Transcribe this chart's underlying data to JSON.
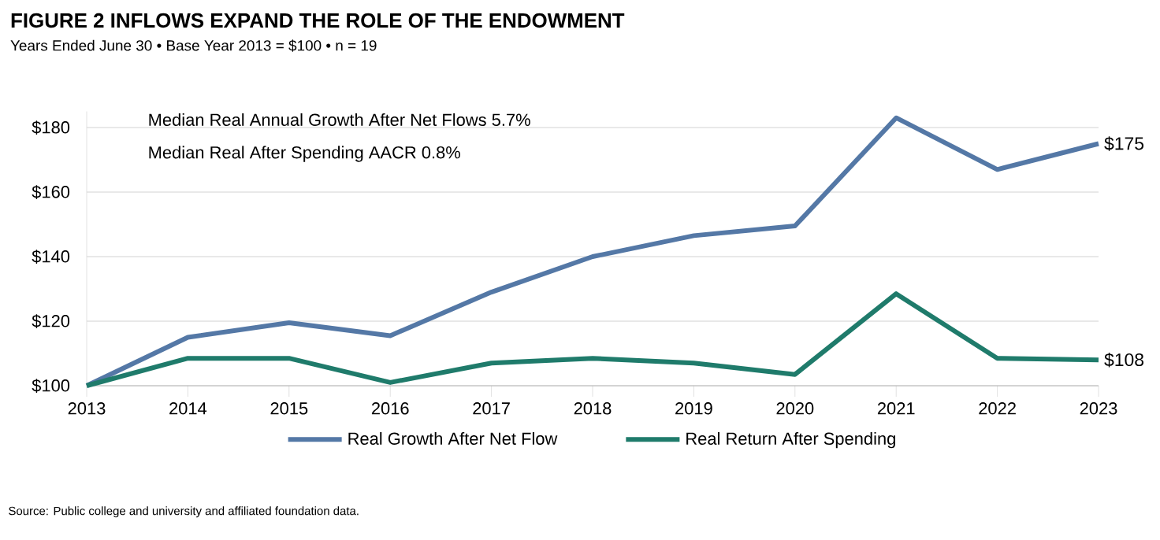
{
  "chart_data": {
    "type": "line",
    "title": "FIGURE 2   INFLOWS EXPAND THE ROLE OF THE ENDOWMENT",
    "subtitle": "Years Ended June 30 • Base Year 2013 = $100 • n = 19",
    "x": [
      2013,
      2014,
      2015,
      2016,
      2017,
      2018,
      2019,
      2020,
      2021,
      2022,
      2023
    ],
    "series": [
      {
        "name": "Real Growth After Net Flow",
        "color": "#5478a6",
        "values": [
          100,
          115,
          119.5,
          115.5,
          129,
          140,
          146.5,
          149.5,
          183,
          167,
          175
        ]
      },
      {
        "name": "Real Return After Spending",
        "color": "#1f7b6b",
        "values": [
          100,
          108.5,
          108.5,
          101,
          107,
          108.5,
          107,
          103.5,
          128.5,
          108.5,
          108
        ]
      }
    ],
    "xlim": [
      2013,
      2023
    ],
    "xticks": [
      2013,
      2014,
      2015,
      2016,
      2017,
      2018,
      2019,
      2020,
      2021,
      2022,
      2023
    ],
    "ylim": [
      100,
      185
    ],
    "yticks": [
      {
        "value": 100,
        "label": "$100"
      },
      {
        "value": 120,
        "label": "$120"
      },
      {
        "value": 140,
        "label": "$140"
      },
      {
        "value": 160,
        "label": "$160"
      },
      {
        "value": 180,
        "label": "$180"
      }
    ],
    "grid": "y",
    "legend": "bottom",
    "annotations": [
      "Median Real Annual Growth After Net Flows 5.7%",
      "Median Real After Spending AACR 0.8%",
      {
        "text": "$175",
        "x": 2023,
        "y": 175
      },
      {
        "text": "$108",
        "x": 2023,
        "y": 108
      },
      "Source: Public college and university and affiliated foundation data."
    ]
  }
}
